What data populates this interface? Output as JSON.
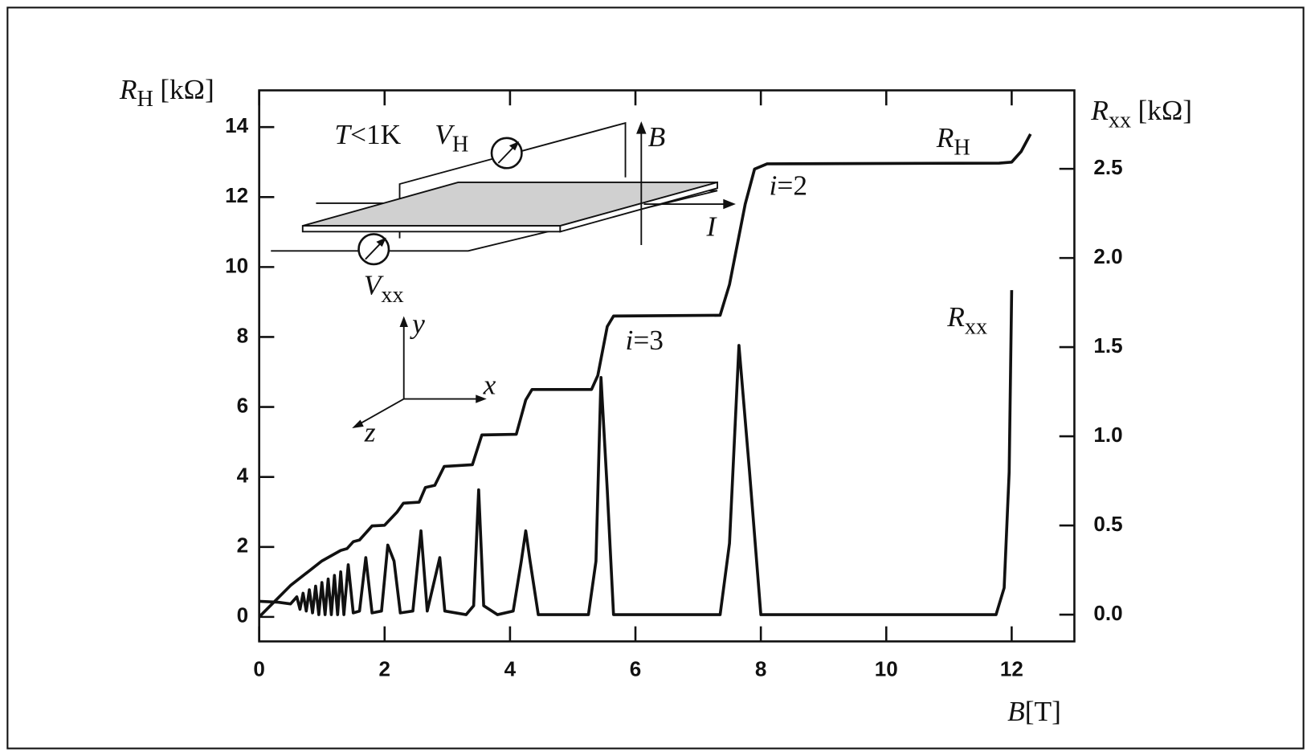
{
  "chart_data": {
    "type": "line",
    "xlabel": {
      "main": "B",
      "unit": "[T]"
    },
    "ylabel": {
      "main": "R",
      "sub": "H",
      "unit": "[kΩ]"
    },
    "y2label": {
      "main": "R",
      "sub": "xx",
      "unit": "[kΩ]"
    },
    "xlim": [
      0,
      13
    ],
    "xticks": [
      0,
      2,
      4,
      6,
      8,
      10,
      12
    ],
    "ylim": [
      -0.7,
      15.05
    ],
    "yticks": [
      0,
      2,
      4,
      6,
      8,
      10,
      12,
      14
    ],
    "y2lim": [
      -0.15,
      2.94
    ],
    "y2ticks": [
      {
        "value": 0,
        "label": "0.0"
      },
      0.5,
      {
        "value": 1,
        "label": "1.0"
      },
      1.5,
      {
        "value": 2,
        "label": "2.0"
      },
      2.5
    ],
    "series": [
      {
        "name": {
          "main": "R",
          "sub": "H"
        },
        "color": "#111111",
        "x": [
          0,
          0.5,
          1.0,
          1.2,
          1.3,
          1.4,
          1.5,
          1.6,
          1.75,
          1.8,
          2.0,
          2.2,
          2.3,
          2.55,
          2.65,
          2.8,
          2.95,
          3.4,
          3.55,
          4.1,
          4.25,
          4.35,
          5.3,
          5.4,
          5.55,
          5.65,
          7.35,
          7.5,
          7.75,
          7.9,
          8.1,
          11.8,
          12.0,
          12.15,
          12.3
        ],
        "values": [
          0,
          0.9,
          1.6,
          1.8,
          1.9,
          1.95,
          2.15,
          2.2,
          2.5,
          2.6,
          2.62,
          3.0,
          3.25,
          3.28,
          3.7,
          3.76,
          4.3,
          4.35,
          5.2,
          5.22,
          6.2,
          6.5,
          6.5,
          6.9,
          8.3,
          8.6,
          8.62,
          9.5,
          11.8,
          12.8,
          12.95,
          12.97,
          13.0,
          13.3,
          13.8
        ]
      },
      {
        "name": {
          "main": "R",
          "sub": "xx"
        },
        "color": "#111111",
        "axis": "y2",
        "x": [
          0,
          0.3,
          0.5,
          0.6,
          0.65,
          0.7,
          0.75,
          0.8,
          0.85,
          0.9,
          0.95,
          1.0,
          1.05,
          1.1,
          1.15,
          1.2,
          1.25,
          1.3,
          1.35,
          1.42,
          1.5,
          1.6,
          1.7,
          1.8,
          1.95,
          2.05,
          2.15,
          2.25,
          2.45,
          2.58,
          2.68,
          2.8,
          2.88,
          2.96,
          3.3,
          3.42,
          3.5,
          3.58,
          3.8,
          4.05,
          4.18,
          4.25,
          4.32,
          4.45,
          5.25,
          5.37,
          5.45,
          5.55,
          5.65,
          7.35,
          7.5,
          7.65,
          7.82,
          8.0,
          11.75,
          11.88,
          11.96,
          12.0
        ],
        "values": [
          0.075,
          0.07,
          0.06,
          0.1,
          0.03,
          0.12,
          0.02,
          0.14,
          0.01,
          0.16,
          0,
          0.18,
          0,
          0.2,
          0,
          0.22,
          0,
          0.24,
          0,
          0.28,
          0.01,
          0.02,
          0.32,
          0.01,
          0.02,
          0.39,
          0.3,
          0.01,
          0.02,
          0.47,
          0.02,
          0.2,
          0.32,
          0.02,
          0,
          0.05,
          0.7,
          0.05,
          0,
          0.02,
          0.3,
          0.47,
          0.3,
          0,
          0,
          0.3,
          1.33,
          0.7,
          0,
          0,
          0.4,
          1.51,
          0.8,
          0,
          0,
          0.15,
          0.8,
          1.82
        ]
      }
    ],
    "annotations": [
      {
        "main": "T",
        "rest": "<1K"
      },
      {
        "main": "V",
        "sub": "H"
      },
      {
        "main": "V",
        "sub": "xx"
      },
      {
        "main": "B"
      },
      {
        "main": "I"
      },
      {
        "main": "y"
      },
      {
        "main": "x"
      },
      {
        "main": "z"
      },
      {
        "main": "i",
        "rest": "=2"
      },
      {
        "main": "i",
        "rest": "=3"
      }
    ]
  }
}
